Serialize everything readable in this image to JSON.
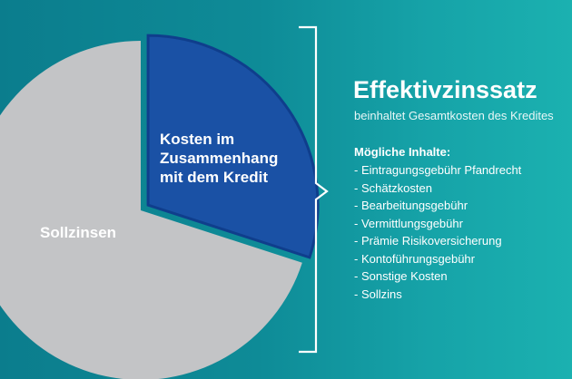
{
  "colors": {
    "background_start": "#0b7d8d",
    "background_end": "#1bb1b0",
    "slice_credit_costs": "#1a51a5",
    "slice_credit_costs_border": "#0f3e8c",
    "slice_sollzinsen": "#c3c4c6",
    "text": "#ffffff"
  },
  "chart_data": {
    "type": "pie",
    "slices": [
      {
        "label": "Kosten im\nZusammenhang\nmit dem Kredit",
        "share": 0.3,
        "color": "#1a51a5",
        "exploded": true
      },
      {
        "label": "Sollzinsen",
        "share": 0.7,
        "color": "#c3c4c6",
        "exploded": false
      }
    ]
  },
  "pie": {
    "credit_costs_label": "Kosten im\nZusammenhang\nmit dem Kredit",
    "sollzinsen_label": "Sollzinsen"
  },
  "info": {
    "title": "Effektivzinssatz",
    "subtitle": "beinhaltet Gesamtkosten des Kredites",
    "contents_heading": "Mögliche Inhalte:",
    "contents": [
      "- Eintragungsgebühr Pfandrecht",
      "- Schätzkosten",
      "- Bearbeitungsgebühr",
      "- Vermittlungsgebühr",
      "- Prämie Risikoversicherung",
      "- Kontoführungsgebühr",
      "- Sonstige Kosten",
      "- Sollzins"
    ]
  }
}
